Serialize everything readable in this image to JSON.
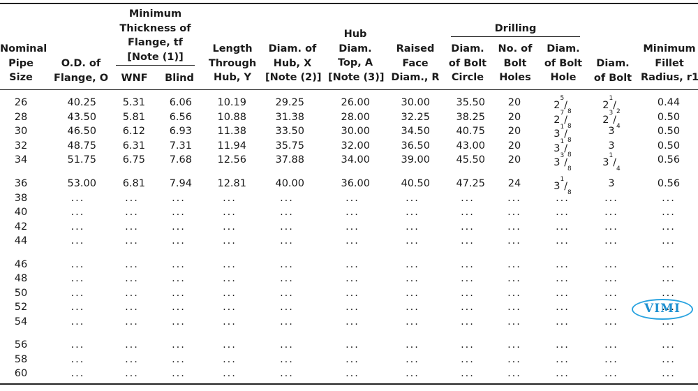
{
  "headers": {
    "nps": [
      "Nominal",
      "Pipe",
      "Size"
    ],
    "od": [
      "O.D. of",
      "Flange, O"
    ],
    "min_thickness": [
      "Minimum",
      "Thickness of",
      "Flange, tf",
      "[Note (1)]"
    ],
    "wnf": "WNF",
    "blind": "Blind",
    "length": [
      "Length",
      "Through",
      "Hub, Y"
    ],
    "diam_hub": [
      "Diam. of",
      "Hub, X",
      "[Note (2)]"
    ],
    "hub_top": [
      "Hub",
      "Diam.",
      "Top, A",
      "[Note (3)]"
    ],
    "raised_face": [
      "Raised",
      "Face",
      "Diam., R"
    ],
    "drilling": "Drilling",
    "bolt_circle": [
      "Diam.",
      "of Bolt",
      "Circle"
    ],
    "bolt_holes": [
      "No. of",
      "Bolt",
      "Holes"
    ],
    "bolt_hole": [
      "Diam.",
      "of Bolt",
      "Hole"
    ],
    "diam_bolt": [
      "Diam.",
      "of Bolt"
    ],
    "fillet": [
      "Minimum",
      "Fillet",
      "Radius, r1"
    ]
  },
  "rows": [
    {
      "nps": "26",
      "od": "40.25",
      "wnf": "5.31",
      "blind": "6.06",
      "y": "10.19",
      "x": "29.25",
      "a": "26.00",
      "r": "30.00",
      "bc": "35.50",
      "holes": "20",
      "hole": {
        "w": "2",
        "n": "5",
        "d": "8"
      },
      "bolt": {
        "w": "2",
        "n": "1",
        "d": "2"
      },
      "fillet": "0.44"
    },
    {
      "nps": "28",
      "od": "43.50",
      "wnf": "5.81",
      "blind": "6.56",
      "y": "10.88",
      "x": "31.38",
      "a": "28.00",
      "r": "32.25",
      "bc": "38.25",
      "holes": "20",
      "hole": {
        "w": "2",
        "n": "7",
        "d": "8"
      },
      "bolt": {
        "w": "2",
        "n": "3",
        "d": "4"
      },
      "fillet": "0.50"
    },
    {
      "nps": "30",
      "od": "46.50",
      "wnf": "6.12",
      "blind": "6.93",
      "y": "11.38",
      "x": "33.50",
      "a": "30.00",
      "r": "34.50",
      "bc": "40.75",
      "holes": "20",
      "hole": {
        "w": "3",
        "n": "1",
        "d": "8"
      },
      "bolt": {
        "w": "3",
        "n": "",
        "d": ""
      },
      "fillet": "0.50"
    },
    {
      "nps": "32",
      "od": "48.75",
      "wnf": "6.31",
      "blind": "7.31",
      "y": "11.94",
      "x": "35.75",
      "a": "32.00",
      "r": "36.50",
      "bc": "43.00",
      "holes": "20",
      "hole": {
        "w": "3",
        "n": "1",
        "d": "8"
      },
      "bolt": {
        "w": "3",
        "n": "",
        "d": ""
      },
      "fillet": "0.50"
    },
    {
      "nps": "34",
      "od": "51.75",
      "wnf": "6.75",
      "blind": "7.68",
      "y": "12.56",
      "x": "37.88",
      "a": "34.00",
      "r": "39.00",
      "bc": "45.50",
      "holes": "20",
      "hole": {
        "w": "3",
        "n": "3",
        "d": "8"
      },
      "bolt": {
        "w": "3",
        "n": "1",
        "d": "4"
      },
      "fillet": "0.56"
    },
    {
      "nps": "36",
      "od": "53.00",
      "wnf": "6.81",
      "blind": "7.94",
      "y": "12.81",
      "x": "40.00",
      "a": "36.00",
      "r": "40.50",
      "bc": "47.25",
      "holes": "24",
      "hole": {
        "w": "3",
        "n": "1",
        "d": "8"
      },
      "bolt": {
        "w": "3",
        "n": "",
        "d": ""
      },
      "fillet": "0.56"
    },
    {
      "nps": "38",
      "dots": true
    },
    {
      "nps": "40",
      "dots": true
    },
    {
      "nps": "42",
      "dots": true
    },
    {
      "nps": "44",
      "dots": true
    },
    {
      "nps": "46",
      "dots": true
    },
    {
      "nps": "48",
      "dots": true
    },
    {
      "nps": "50",
      "dots": true
    },
    {
      "nps": "52",
      "dots": true
    },
    {
      "nps": "54",
      "dots": true
    },
    {
      "nps": "56",
      "dots": true
    },
    {
      "nps": "58",
      "dots": true
    },
    {
      "nps": "60",
      "dots": true
    }
  ],
  "ellipsis": "...",
  "watermark": "VIMI"
}
